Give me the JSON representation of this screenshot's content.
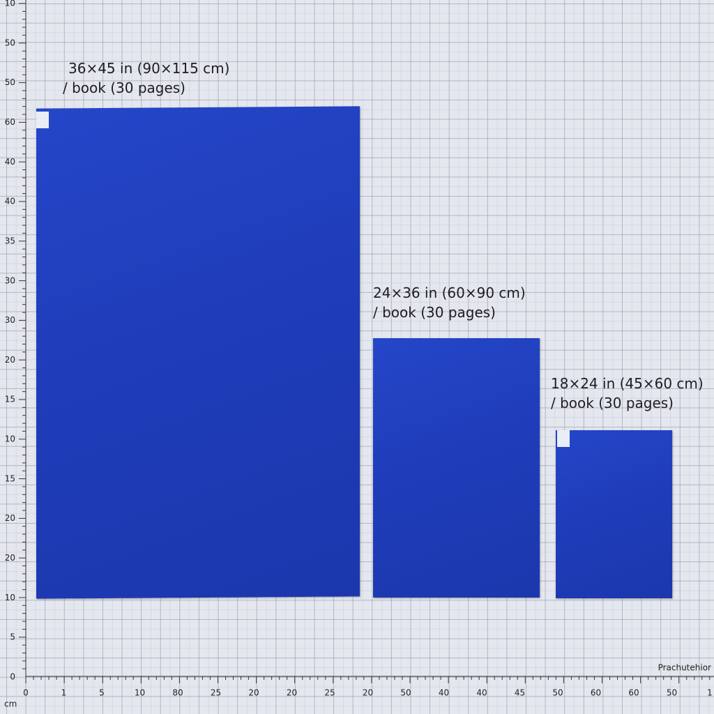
{
  "captions": [
    {
      "line1": "36×45 in (90×115 cm)",
      "line2": "/ book (30 pages)"
    },
    {
      "line1": "24×36 in (60×90 cm)",
      "line2": "/ book (30 pages)"
    },
    {
      "line1": "18×24 in (45×60 cm)",
      "line2": "/ book (30 pages)"
    }
  ],
  "ruler": {
    "left_labels": [
      "10",
      "50",
      "50",
      "60",
      "40",
      "40",
      "35",
      "30",
      "30",
      "20",
      "15",
      "10",
      "15",
      "20",
      "20",
      "10",
      "5",
      "0"
    ],
    "bottom_labels": [
      "0",
      "1",
      "5",
      "10",
      "80",
      "25",
      "20",
      "20",
      "25",
      "20",
      "50",
      "40",
      "40",
      "45",
      "50",
      "60",
      "60",
      "50",
      "1"
    ],
    "unit": "cm"
  },
  "brand": "Prachutehior"
}
